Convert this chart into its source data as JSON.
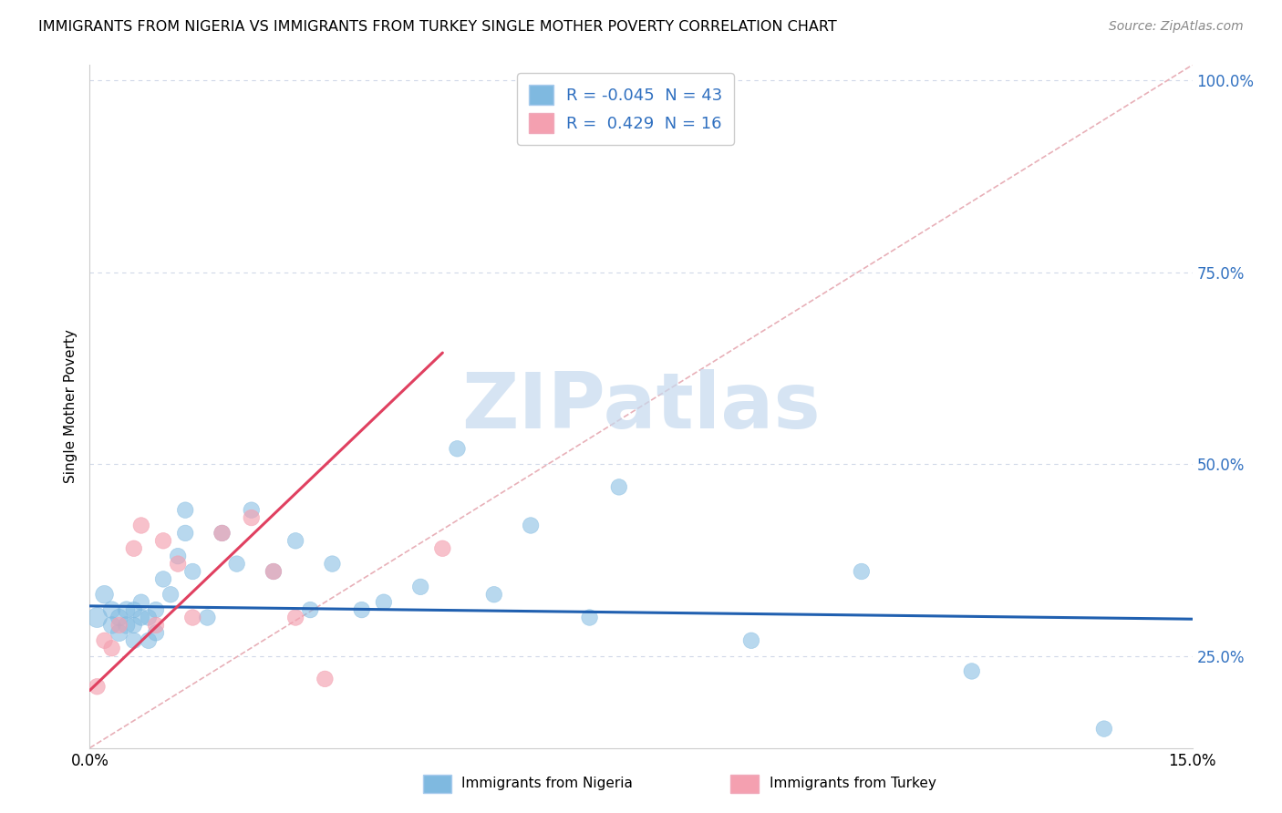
{
  "title": "IMMIGRANTS FROM NIGERIA VS IMMIGRANTS FROM TURKEY SINGLE MOTHER POVERTY CORRELATION CHART",
  "source": "Source: ZipAtlas.com",
  "ylabel": "Single Mother Poverty",
  "xlabel_nigeria": "Immigrants from Nigeria",
  "xlabel_turkey": "Immigrants from Turkey",
  "r_nigeria": -0.045,
  "n_nigeria": 43,
  "r_turkey": 0.429,
  "n_turkey": 16,
  "xmin": 0.0,
  "xmax": 0.15,
  "ymin": 0.13,
  "ymax": 1.02,
  "yticks": [
    0.25,
    0.5,
    0.75,
    1.0
  ],
  "ytick_labels": [
    "25.0%",
    "50.0%",
    "75.0%",
    "100.0%"
  ],
  "xticks": [
    0.0,
    0.025,
    0.05,
    0.075,
    0.1,
    0.125,
    0.15
  ],
  "xtick_labels": [
    "0.0%",
    "",
    "",
    "",
    "",
    "",
    "15.0%"
  ],
  "color_nigeria": "#7fb9e0",
  "color_turkey": "#f4a0b0",
  "line_color_nigeria": "#2060b0",
  "line_color_turkey": "#e04060",
  "ref_line_color": "#e8b0b8",
  "tick_color": "#3070c0",
  "watermark_text": "ZIPatlas",
  "watermark_color": "#c5d9ee",
  "nigeria_x": [
    0.001,
    0.002,
    0.003,
    0.003,
    0.004,
    0.004,
    0.005,
    0.005,
    0.006,
    0.006,
    0.006,
    0.007,
    0.007,
    0.008,
    0.008,
    0.009,
    0.009,
    0.01,
    0.011,
    0.012,
    0.013,
    0.013,
    0.014,
    0.016,
    0.018,
    0.02,
    0.022,
    0.025,
    0.028,
    0.03,
    0.033,
    0.037,
    0.04,
    0.045,
    0.05,
    0.055,
    0.06,
    0.068,
    0.072,
    0.09,
    0.105,
    0.12,
    0.138
  ],
  "nigeria_y": [
    0.3,
    0.33,
    0.29,
    0.31,
    0.28,
    0.3,
    0.31,
    0.29,
    0.27,
    0.29,
    0.31,
    0.3,
    0.32,
    0.27,
    0.3,
    0.28,
    0.31,
    0.35,
    0.33,
    0.38,
    0.41,
    0.44,
    0.36,
    0.3,
    0.41,
    0.37,
    0.44,
    0.36,
    0.4,
    0.31,
    0.37,
    0.31,
    0.32,
    0.34,
    0.52,
    0.33,
    0.42,
    0.3,
    0.47,
    0.27,
    0.36,
    0.23,
    0.155
  ],
  "nigeria_sizes": [
    250,
    200,
    180,
    180,
    180,
    180,
    180,
    180,
    160,
    160,
    160,
    160,
    160,
    160,
    160,
    160,
    160,
    160,
    160,
    160,
    160,
    160,
    160,
    160,
    160,
    160,
    160,
    160,
    160,
    160,
    160,
    160,
    160,
    160,
    160,
    160,
    160,
    160,
    160,
    160,
    160,
    160,
    160
  ],
  "turkey_x": [
    0.001,
    0.002,
    0.003,
    0.004,
    0.006,
    0.007,
    0.009,
    0.01,
    0.012,
    0.014,
    0.018,
    0.022,
    0.025,
    0.028,
    0.032,
    0.048
  ],
  "turkey_y": [
    0.21,
    0.27,
    0.26,
    0.29,
    0.39,
    0.42,
    0.29,
    0.4,
    0.37,
    0.3,
    0.41,
    0.43,
    0.36,
    0.3,
    0.22,
    0.39
  ],
  "turkey_sizes": [
    160,
    160,
    160,
    160,
    160,
    160,
    160,
    160,
    160,
    160,
    160,
    160,
    160,
    160,
    160,
    160
  ],
  "trend_nigeria_x0": 0.0,
  "trend_nigeria_x1": 0.15,
  "trend_nigeria_y0": 0.315,
  "trend_nigeria_y1": 0.298,
  "trend_turkey_x0": 0.0,
  "trend_turkey_x1": 0.048,
  "trend_turkey_y0": 0.205,
  "trend_turkey_y1": 0.645
}
